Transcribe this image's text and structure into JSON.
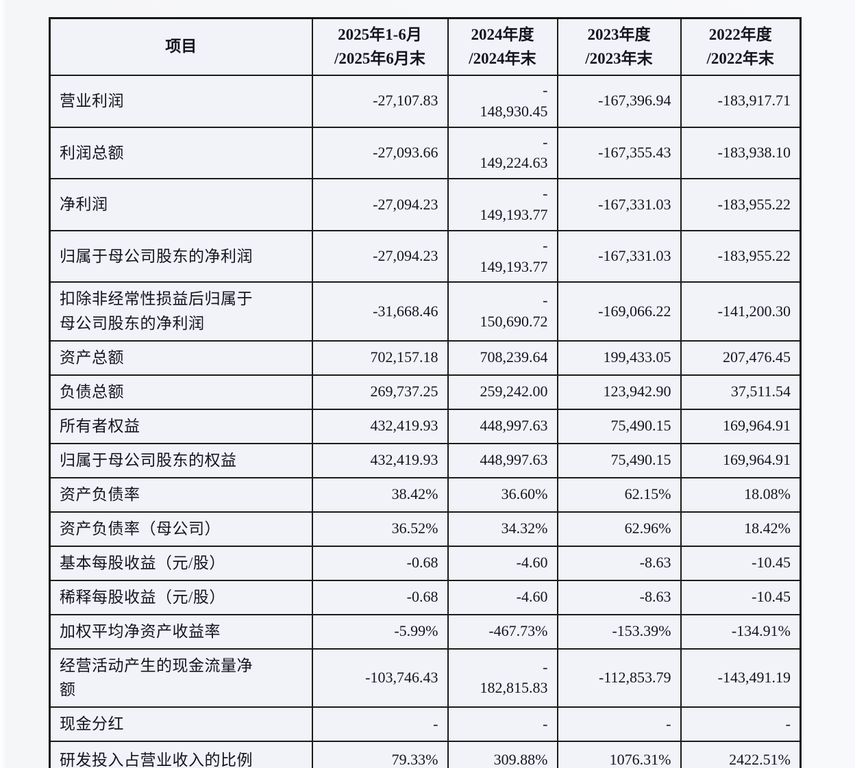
{
  "table": {
    "columns": [
      "项目",
      "2025年1-6月\n/2025年6月末",
      "2024年度\n/2024年末",
      "2023年度\n/2023年末",
      "2022年度\n/2022年末"
    ],
    "rows": [
      {
        "label": "营业利润",
        "values": [
          "-27,107.83",
          "-\n148,930.45",
          "-167,396.94",
          "-183,917.71"
        ]
      },
      {
        "label": "利润总额",
        "values": [
          "-27,093.66",
          "-\n149,224.63",
          "-167,355.43",
          "-183,938.10"
        ]
      },
      {
        "label": "净利润",
        "values": [
          "-27,094.23",
          "-\n149,193.77",
          "-167,331.03",
          "-183,955.22"
        ]
      },
      {
        "label": "归属于母公司股东的净利润",
        "values": [
          "-27,094.23",
          "-\n149,193.77",
          "-167,331.03",
          "-183,955.22"
        ]
      },
      {
        "label": "扣除非经常性损益后归属于\n母公司股东的净利润",
        "values": [
          "-31,668.46",
          "-\n150,690.72",
          "-169,066.22",
          "-141,200.30"
        ]
      },
      {
        "label": "资产总额",
        "values": [
          "702,157.18",
          "708,239.64",
          "199,433.05",
          "207,476.45"
        ]
      },
      {
        "label": "负债总额",
        "values": [
          "269,737.25",
          "259,242.00",
          "123,942.90",
          "37,511.54"
        ]
      },
      {
        "label": "所有者权益",
        "values": [
          "432,419.93",
          "448,997.63",
          "75,490.15",
          "169,964.91"
        ]
      },
      {
        "label": "归属于母公司股东的权益",
        "values": [
          "432,419.93",
          "448,997.63",
          "75,490.15",
          "169,964.91"
        ]
      },
      {
        "label": "资产负债率",
        "values": [
          "38.42%",
          "36.60%",
          "62.15%",
          "18.08%"
        ]
      },
      {
        "label": "资产负债率（母公司）",
        "values": [
          "36.52%",
          "34.32%",
          "62.96%",
          "18.42%"
        ]
      },
      {
        "label": "基本每股收益（元/股）",
        "values": [
          "-0.68",
          "-4.60",
          "-8.63",
          "-10.45"
        ]
      },
      {
        "label": "稀释每股收益（元/股）",
        "values": [
          "-0.68",
          "-4.60",
          "-8.63",
          "-10.45"
        ]
      },
      {
        "label": "加权平均净资产收益率",
        "values": [
          "-5.99%",
          "-467.73%",
          "-153.39%",
          "-134.91%"
        ]
      },
      {
        "label": "经营活动产生的现金流量净\n额",
        "values": [
          "-103,746.43",
          "-\n182,815.83",
          "-112,853.79",
          "-143,491.19"
        ]
      },
      {
        "label": "现金分红",
        "values": [
          "-",
          "-",
          "-",
          "-"
        ]
      },
      {
        "label": "研发投入占营业收入的比例",
        "values": [
          "79.33%",
          "309.88%",
          "1076.31%",
          "2422.51%"
        ]
      }
    ]
  },
  "colors": {
    "border": "#1b1b1b",
    "cell_background": "#f1f3f8",
    "page_background": "#f7f8fa",
    "text": "#14141f"
  }
}
